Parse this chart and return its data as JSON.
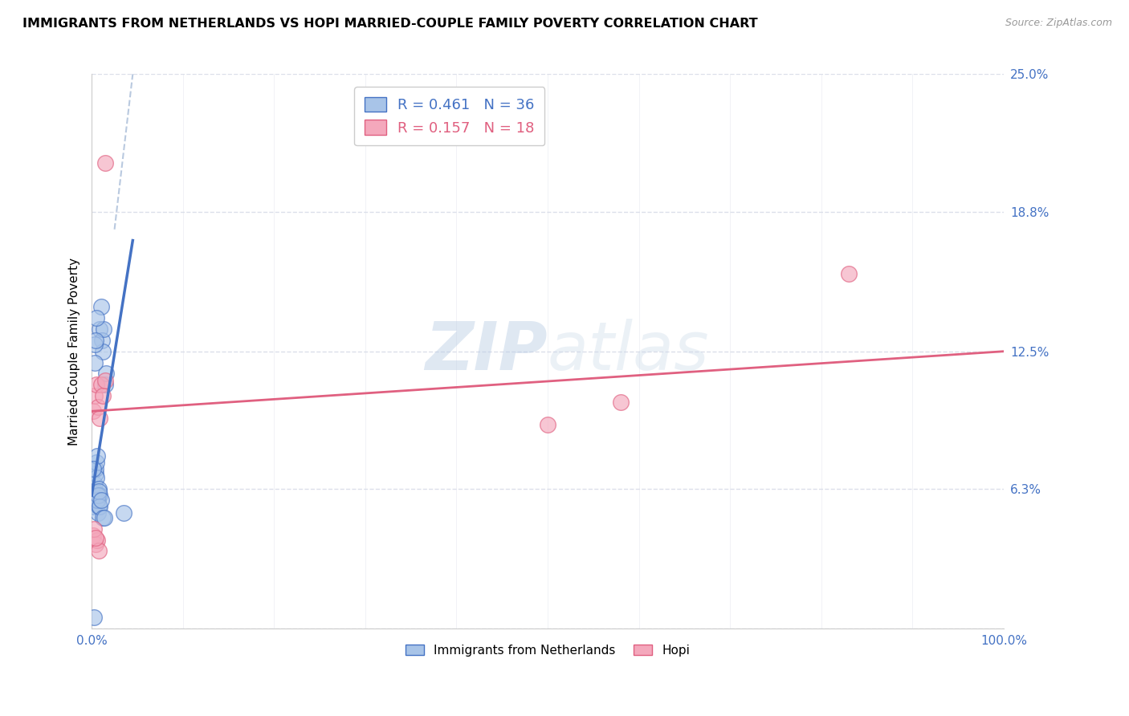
{
  "title": "IMMIGRANTS FROM NETHERLANDS VS HOPI MARRIED-COUPLE FAMILY POVERTY CORRELATION CHART",
  "source": "Source: ZipAtlas.com",
  "ylabel": "Married-Couple Family Poverty",
  "xlim": [
    0,
    100
  ],
  "ylim": [
    0,
    25
  ],
  "blue_R": "0.461",
  "blue_N": "36",
  "pink_R": "0.157",
  "pink_N": "18",
  "blue_color": "#a8c4e8",
  "pink_color": "#f4a8bc",
  "blue_line_color": "#4472c4",
  "pink_line_color": "#e06080",
  "dashed_line_color": "#a8bcd8",
  "watermark_zip": "ZIP",
  "watermark_atlas": "atlas",
  "blue_scatter_x": [
    0.15,
    0.2,
    0.25,
    0.3,
    0.35,
    0.4,
    0.45,
    0.5,
    0.55,
    0.6,
    0.65,
    0.7,
    0.75,
    0.8,
    0.85,
    0.9,
    1.0,
    1.1,
    1.2,
    1.3,
    1.5,
    1.6,
    0.2,
    0.3,
    0.35,
    0.4,
    0.5,
    0.6,
    0.7,
    0.8,
    0.9,
    1.0,
    1.2,
    1.4,
    0.25,
    3.5
  ],
  "blue_scatter_y": [
    5.5,
    5.8,
    6.0,
    6.2,
    6.5,
    7.0,
    7.2,
    7.5,
    6.8,
    7.8,
    5.2,
    5.8,
    6.3,
    5.5,
    6.0,
    13.5,
    14.5,
    13.0,
    12.5,
    13.5,
    11.0,
    11.5,
    7.2,
    12.0,
    12.8,
    13.0,
    14.0,
    5.8,
    6.0,
    6.2,
    5.5,
    5.8,
    5.0,
    5.0,
    0.5,
    5.2
  ],
  "pink_scatter_x": [
    0.15,
    0.3,
    0.5,
    0.7,
    0.9,
    1.0,
    1.2,
    1.5,
    0.2,
    0.4,
    0.6,
    0.8,
    1.5,
    50.0,
    58.0,
    83.0,
    0.25,
    0.45
  ],
  "pink_scatter_y": [
    9.8,
    10.5,
    11.0,
    10.0,
    9.5,
    11.0,
    10.5,
    11.2,
    4.2,
    3.8,
    4.0,
    3.5,
    21.0,
    9.2,
    10.2,
    16.0,
    4.5,
    4.1
  ],
  "blue_reg_x0": 0.0,
  "blue_reg_y0": 6.0,
  "blue_reg_x1": 4.5,
  "blue_reg_y1": 17.5,
  "pink_reg_x0": 0.0,
  "pink_reg_y0": 9.8,
  "pink_reg_x1": 100.0,
  "pink_reg_y1": 12.5,
  "diag_x0": 2.5,
  "diag_y0": 18.0,
  "diag_x1": 4.5,
  "diag_y1": 25.0,
  "grid_color": "#d8dce8",
  "ytick_positions": [
    0,
    6.3,
    12.5,
    18.8,
    25.0
  ],
  "ytick_labels": [
    "",
    "6.3%",
    "12.5%",
    "18.8%",
    "25.0%"
  ]
}
